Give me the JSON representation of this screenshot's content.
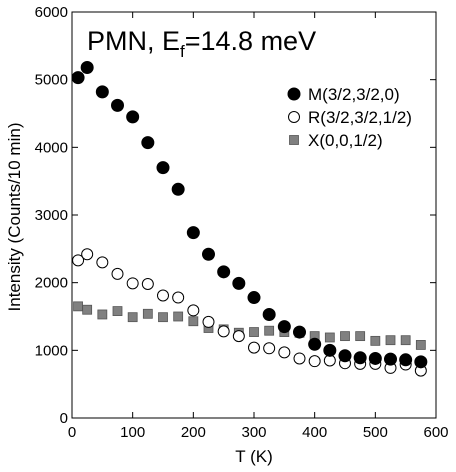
{
  "chart_data": {
    "type": "scatter",
    "title_main": "PMN, E",
    "title_sub": "f",
    "title_rest": "=14.8 meV",
    "xlabel": "T (K)",
    "ylabel": "Intensity (Counts/10 min)",
    "xlim": [
      0,
      600
    ],
    "ylim": [
      0,
      6000
    ],
    "xticks": [
      0,
      100,
      200,
      300,
      400,
      500,
      600
    ],
    "yticks": [
      0,
      1000,
      2000,
      3000,
      4000,
      5000,
      6000
    ],
    "grid": false,
    "legend_position": "top-right",
    "series": [
      {
        "name": "M(3/2,3/2,0)",
        "marker": "filled-circle",
        "color": "#000000",
        "x": [
          10,
          25,
          50,
          75,
          100,
          125,
          150,
          175,
          200,
          225,
          250,
          275,
          300,
          325,
          350,
          375,
          400,
          425,
          450,
          475,
          500,
          525,
          550,
          575
        ],
        "y": [
          5030,
          5180,
          4820,
          4620,
          4450,
          4070,
          3700,
          3380,
          2740,
          2420,
          2160,
          1990,
          1780,
          1530,
          1350,
          1270,
          1090,
          1000,
          920,
          890,
          880,
          870,
          860,
          830
        ]
      },
      {
        "name": "R(3/2,3/2,1/2)",
        "marker": "open-circle",
        "color": "#000000",
        "x": [
          10,
          25,
          50,
          75,
          100,
          125,
          150,
          175,
          200,
          225,
          250,
          275,
          300,
          325,
          350,
          375,
          400,
          425,
          450,
          475,
          500,
          525,
          550,
          575
        ],
        "y": [
          2330,
          2420,
          2300,
          2130,
          1990,
          1980,
          1810,
          1780,
          1590,
          1420,
          1280,
          1210,
          1040,
          1030,
          970,
          880,
          840,
          850,
          810,
          800,
          800,
          740,
          790,
          700
        ]
      },
      {
        "name": "X(0,0,1/2)",
        "marker": "filled-square",
        "color": "#808080",
        "x": [
          10,
          25,
          50,
          75,
          100,
          125,
          150,
          175,
          200,
          225,
          250,
          275,
          300,
          325,
          350,
          375,
          400,
          425,
          450,
          475,
          500,
          525,
          550,
          575
        ],
        "y": [
          1650,
          1600,
          1530,
          1580,
          1490,
          1540,
          1490,
          1500,
          1430,
          1330,
          1310,
          1260,
          1270,
          1290,
          1270,
          1260,
          1210,
          1190,
          1210,
          1210,
          1140,
          1150,
          1150,
          1080
        ]
      }
    ]
  }
}
